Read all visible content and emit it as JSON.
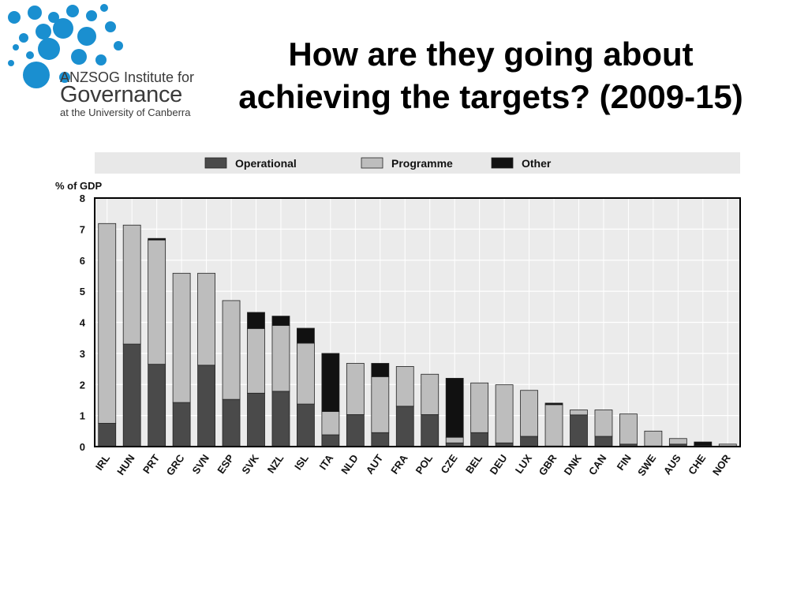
{
  "logo": {
    "line1": "ANZSOG Institute for",
    "line2": "Governance",
    "line3": "at the University of Canberra",
    "dot_color": "#1a8fd0"
  },
  "title": {
    "line1": "How are they going about",
    "line2": "achieving the targets? (2009-15)"
  },
  "chart_data": {
    "type": "bar",
    "stacked": true,
    "ylabel": "% of GDP",
    "ylim": [
      0,
      8
    ],
    "yticks": [
      0,
      1,
      2,
      3,
      4,
      5,
      6,
      7,
      8
    ],
    "grid": true,
    "legend_position": "top",
    "categories": [
      "IRL",
      "HUN",
      "PRT",
      "GRC",
      "SVN",
      "ESP",
      "SVK",
      "NZL",
      "ISL",
      "ITA",
      "NLD",
      "AUT",
      "FRA",
      "POL",
      "CZE",
      "BEL",
      "DEU",
      "LUX",
      "GBR",
      "DNK",
      "CAN",
      "FIN",
      "SWE",
      "AUS",
      "CHE",
      "NOR"
    ],
    "series": [
      {
        "name": "Operational",
        "color": "#4a4a4a",
        "values": [
          0.75,
          3.3,
          2.65,
          1.42,
          2.62,
          1.52,
          1.72,
          1.78,
          1.37,
          0.38,
          1.03,
          0.45,
          1.3,
          1.03,
          0.12,
          0.45,
          0.12,
          0.33,
          0.02,
          1.02,
          0.33,
          0.08,
          0.02,
          0.08,
          0.02,
          0.02
        ]
      },
      {
        "name": "Programme",
        "color": "#bdbdbd",
        "values": [
          6.43,
          3.83,
          4.0,
          4.16,
          2.96,
          3.18,
          2.08,
          2.12,
          1.96,
          0.75,
          1.65,
          1.8,
          1.28,
          1.3,
          0.18,
          1.6,
          1.87,
          1.48,
          1.33,
          0.16,
          0.85,
          0.97,
          0.48,
          0.18,
          0.02,
          0.06
        ]
      },
      {
        "name": "Other",
        "color": "#111111",
        "values": [
          0.0,
          0.0,
          0.05,
          0.0,
          0.0,
          0.0,
          0.52,
          0.3,
          0.48,
          1.87,
          0.0,
          0.43,
          0.0,
          0.0,
          1.9,
          0.0,
          0.0,
          0.0,
          0.05,
          0.0,
          0.0,
          0.0,
          0.0,
          0.0,
          0.11,
          0.0
        ]
      }
    ]
  }
}
